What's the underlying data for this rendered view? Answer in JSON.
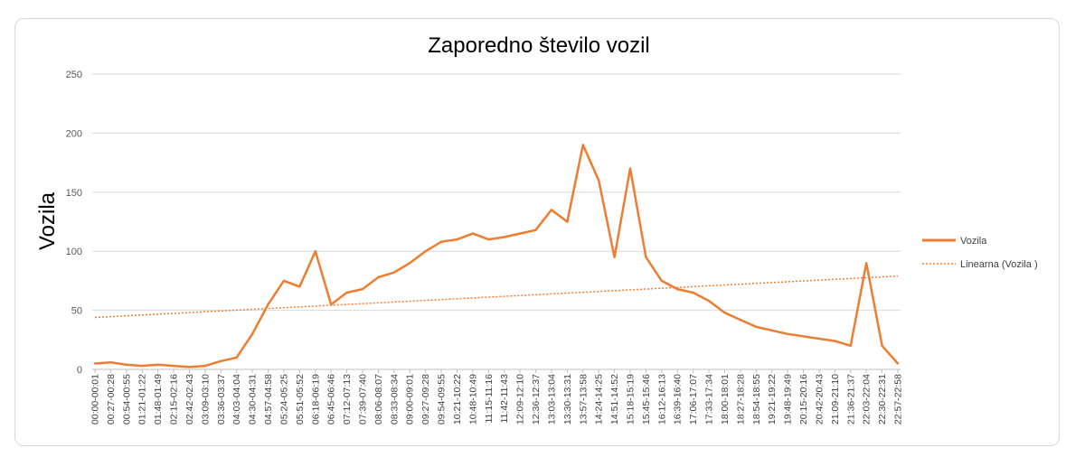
{
  "chart_data": {
    "type": "line",
    "title": "Zaporedno število vozil",
    "ylabel": "Vozila",
    "xlabel": "",
    "ylim": [
      0,
      250
    ],
    "yticks": [
      0,
      50,
      100,
      150,
      200,
      250
    ],
    "grid": true,
    "legend_position": "right",
    "categories": [
      "00:00-00:01",
      "00:27-00:28",
      "00:54-00:55",
      "01:21-01:22",
      "01:48-01:49",
      "02:15-02:16",
      "02:42-02:43",
      "03:09-03:10",
      "03:36-03:37",
      "04:03-04:04",
      "04:30-04:31",
      "04:57-04:58",
      "05:24-05:25",
      "05:51-05:52",
      "06:18-06:19",
      "06:45-06:46",
      "07:12-07:13",
      "07:39-07:40",
      "08:06-08:07",
      "08:33-08:34",
      "09:00-09:01",
      "09:27-09:28",
      "09:54-09:55",
      "10:21-10:22",
      "10:48-10:49",
      "11:15-11:16",
      "11:42-11:43",
      "12:09-12:10",
      "12:36-12:37",
      "13:03-13:04",
      "13:30-13:31",
      "13:57-13:58",
      "14:24-14:25",
      "14:51-14:52",
      "15:18-15:19",
      "15:45-15:46",
      "16:12-16:13",
      "16:39-16:40",
      "17:06-17:07",
      "17:33-17:34",
      "18:00-18:01",
      "18:27-18:28",
      "18:54-18:55",
      "19:21-19:22",
      "19:48-19:49",
      "20:15-20:16",
      "20:42-20:43",
      "21:09-21:10",
      "21:36-21:37",
      "22:03-22:04",
      "22:30-22:31",
      "22:57-22:58"
    ],
    "series": [
      {
        "name": "Vozila",
        "color": "#ED7D31",
        "values": [
          5,
          6,
          4,
          3,
          4,
          3,
          2,
          3,
          7,
          10,
          30,
          55,
          75,
          70,
          100,
          55,
          65,
          68,
          78,
          82,
          90,
          100,
          108,
          110,
          115,
          110,
          112,
          115,
          118,
          135,
          125,
          190,
          160,
          95,
          170,
          95,
          75,
          68,
          65,
          58,
          48,
          42,
          36,
          33,
          30,
          28,
          26,
          24,
          20,
          90,
          20,
          5
        ]
      },
      {
        "name": "Linearna (Vozila )",
        "type": "trendline",
        "color": "#ED7D31",
        "start": 44,
        "end": 79
      }
    ]
  },
  "legend": {
    "series1": "Vozila",
    "series2": "Linearna (Vozila )"
  }
}
